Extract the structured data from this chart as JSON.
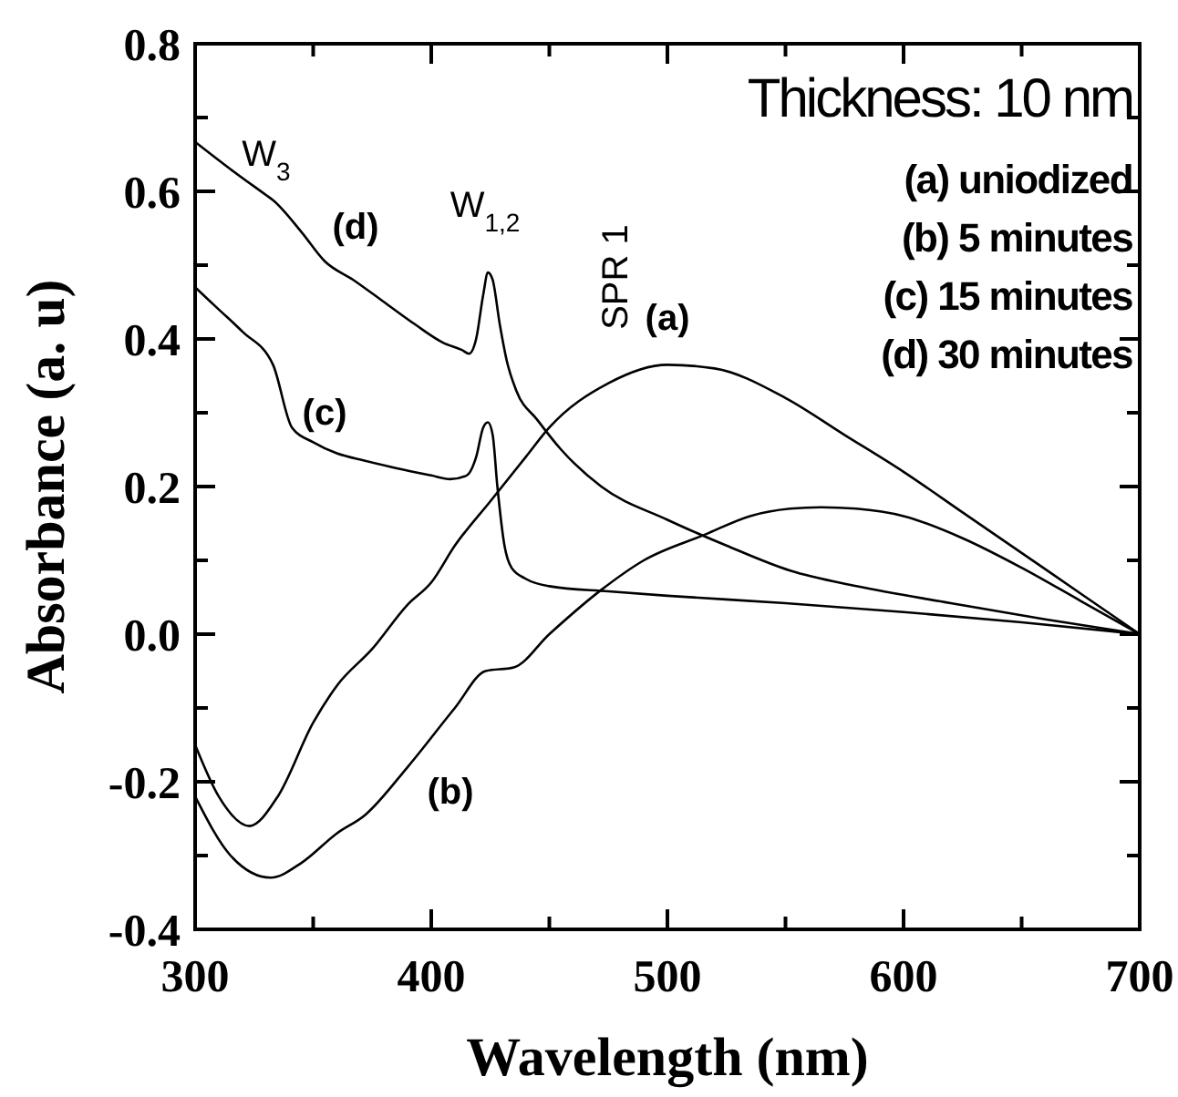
{
  "chart_data": {
    "type": "line",
    "xlabel": "Wavelength (nm)",
    "ylabel": "Absorbance (a. u)",
    "xlim": [
      300,
      700
    ],
    "ylim": [
      -0.4,
      0.8
    ],
    "xticks": [
      300,
      {
        "value": 350,
        "label": null
      },
      400,
      {
        "value": 450,
        "label": null
      },
      500,
      {
        "value": 550,
        "label": null
      },
      600,
      {
        "value": 650,
        "label": null
      },
      700
    ],
    "yticks": [
      {
        "value": -0.4,
        "label": "-0.4"
      },
      {
        "value": -0.3,
        "label": null
      },
      {
        "value": -0.2,
        "label": "-0.2"
      },
      {
        "value": -0.1,
        "label": null
      },
      {
        "value": 0,
        "label": "0.0"
      },
      {
        "value": 0.1,
        "label": null
      },
      {
        "value": 0.2,
        "label": "0.2"
      },
      {
        "value": 0.3,
        "label": null
      },
      {
        "value": 0.4,
        "label": "0.4"
      },
      {
        "value": 0.5,
        "label": null
      },
      {
        "value": 0.6,
        "label": "0.6"
      },
      {
        "value": 0.7,
        "label": null
      },
      {
        "value": 0.8,
        "label": "0.8"
      }
    ],
    "grid": false,
    "marker": "none",
    "line_style": "solid",
    "series": [
      {
        "color": "#000000",
        "x": [
          300,
          310,
          323,
          335,
          350,
          360,
          375,
          390,
          400,
          410,
          425,
          440,
          450,
          475,
          500,
          520,
          550,
          575,
          600,
          625,
          650,
          675,
          700
        ],
        "values": [
          -0.15,
          -0.22,
          -0.26,
          -0.22,
          -0.12,
          -0.07,
          -0.02,
          0.04,
          0.07,
          0.12,
          0.18,
          0.24,
          0.28,
          0.34,
          0.365,
          0.36,
          0.32,
          0.27,
          0.22,
          0.165,
          0.11,
          0.055,
          0
        ]
      },
      {
        "color": "#000000",
        "x": [
          300,
          315,
          332,
          345,
          360,
          372,
          390,
          410,
          423,
          435,
          450,
          472,
          490,
          516,
          535,
          552,
          565,
          580,
          600,
          625,
          650,
          675,
          700
        ],
        "values": [
          -0.22,
          -0.3,
          -0.33,
          -0.31,
          -0.27,
          -0.245,
          -0.18,
          -0.1,
          -0.05,
          -0.045,
          0,
          0.06,
          0.1,
          0.135,
          0.16,
          0.17,
          0.172,
          0.17,
          0.16,
          0.13,
          0.09,
          0.045,
          0
        ]
      },
      {
        "color": "#000000",
        "x": [
          300,
          310,
          320,
          333,
          341,
          350,
          360,
          372,
          385,
          400,
          408,
          415,
          419,
          422,
          424,
          426,
          428,
          431,
          434,
          440,
          450,
          475,
          500,
          550,
          600,
          650,
          700
        ],
        "values": [
          0.47,
          0.44,
          0.41,
          0.365,
          0.28,
          0.26,
          0.245,
          0.235,
          0.225,
          0.215,
          0.21,
          0.215,
          0.24,
          0.28,
          0.287,
          0.27,
          0.2,
          0.12,
          0.09,
          0.075,
          0.065,
          0.058,
          0.052,
          0.042,
          0.03,
          0.016,
          0
        ]
      },
      {
        "color": "#000000",
        "x": [
          300,
          315,
          330,
          333,
          345,
          355,
          367,
          380,
          393,
          405,
          413,
          416,
          419,
          422,
          424,
          426,
          429,
          432,
          436,
          445,
          455,
          472,
          500,
          525,
          552,
          580,
          620,
          660,
          700
        ],
        "values": [
          0.667,
          0.63,
          0.595,
          0.588,
          0.545,
          0.505,
          0.48,
          0.45,
          0.42,
          0.395,
          0.385,
          0.38,
          0.4,
          0.46,
          0.49,
          0.48,
          0.42,
          0.37,
          0.33,
          0.29,
          0.25,
          0.2,
          0.155,
          0.12,
          0.086,
          0.065,
          0.042,
          0.02,
          0
        ]
      }
    ],
    "annotations": [
      "Thickness: 10 nm",
      "(a) uniodized",
      "(b) 5 minutes",
      "(c) 15 minutes",
      "(d) 30 minutes",
      "W$_{3}$",
      "(d)",
      "W$_{1,2}$",
      "SPR 1",
      "(a)",
      "(c)",
      "(b)"
    ]
  }
}
